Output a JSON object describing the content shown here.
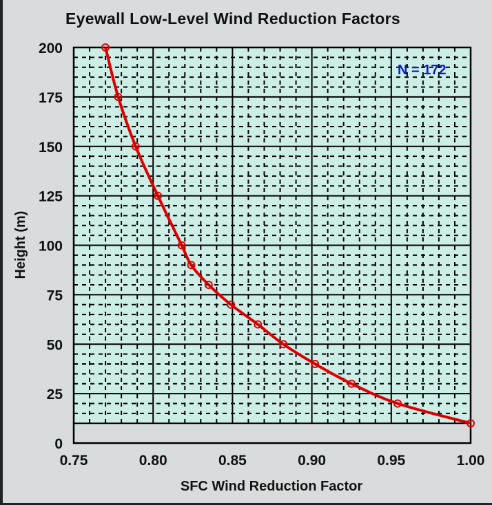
{
  "chart_data": {
    "type": "line",
    "title": "Eyewall Low-Level Wind Reduction Factors",
    "xlabel": "SFC Wind Reduction Factor",
    "ylabel": "Height (m)",
    "xlim": [
      0.75,
      1.0
    ],
    "ylim": [
      0,
      200
    ],
    "xticks": [
      "0.75",
      "0.80",
      "0.85",
      "0.90",
      "0.95",
      "1.00"
    ],
    "yticks": [
      "0",
      "25",
      "50",
      "75",
      "100",
      "125",
      "150",
      "175",
      "200"
    ],
    "grid": true,
    "annotation": "N = 172",
    "series": [
      {
        "name": "Eyewall",
        "color": "#dd0000",
        "x": [
          0.77,
          0.778,
          0.789,
          0.803,
          0.818,
          0.824,
          0.835,
          0.849,
          0.866,
          0.882,
          0.902,
          0.925,
          0.954,
          1.0
        ],
        "y": [
          200,
          175,
          150,
          125,
          100,
          90,
          80,
          70,
          60,
          50,
          40,
          30,
          20,
          10
        ]
      }
    ],
    "colors": {
      "plot_bg": "#cdeee6",
      "annotation": "#0a1ecc",
      "line": "#dd0000"
    }
  }
}
